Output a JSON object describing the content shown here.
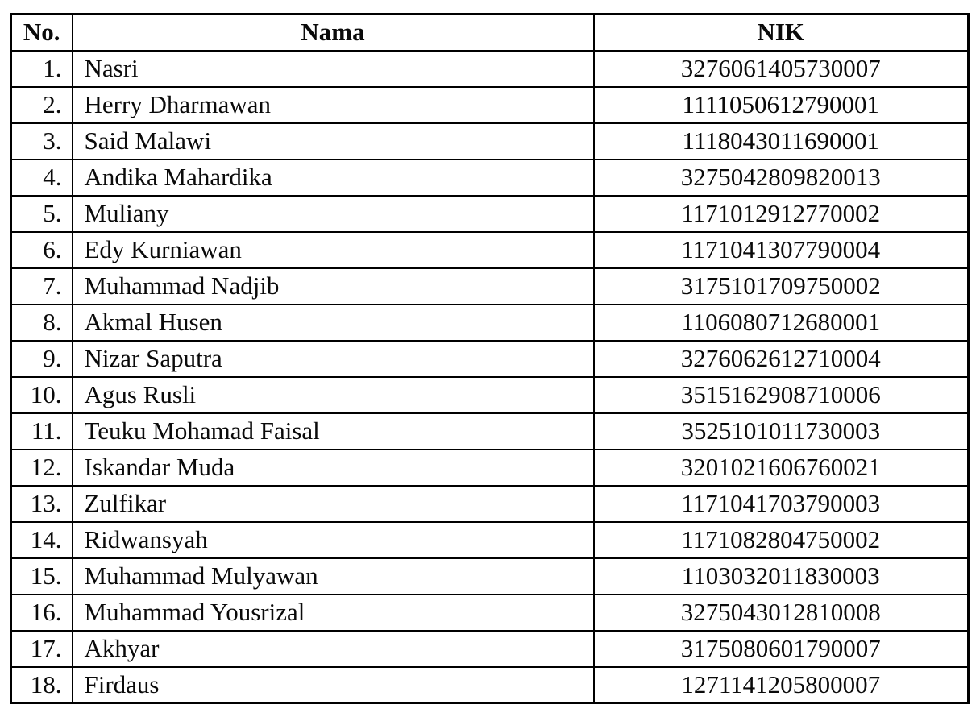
{
  "table": {
    "headers": {
      "no": "No.",
      "nama": "Nama",
      "nik": "NIK"
    },
    "rows": [
      {
        "no": "1.",
        "nama": "Nasri",
        "nik": "3276061405730007"
      },
      {
        "no": "2.",
        "nama": "Herry Dharmawan",
        "nik": "1111050612790001"
      },
      {
        "no": "3.",
        "nama": "Said Malawi",
        "nik": "1118043011690001"
      },
      {
        "no": "4.",
        "nama": "Andika Mahardika",
        "nik": "3275042809820013"
      },
      {
        "no": "5.",
        "nama": "Muliany",
        "nik": "1171012912770002"
      },
      {
        "no": "6.",
        "nama": "Edy Kurniawan",
        "nik": "1171041307790004"
      },
      {
        "no": "7.",
        "nama": "Muhammad Nadjib",
        "nik": "3175101709750002"
      },
      {
        "no": "8.",
        "nama": "Akmal Husen",
        "nik": "1106080712680001"
      },
      {
        "no": "9.",
        "nama": "Nizar Saputra",
        "nik": "3276062612710004"
      },
      {
        "no": "10.",
        "nama": "Agus Rusli",
        "nik": "3515162908710006"
      },
      {
        "no": "11.",
        "nama": "Teuku Mohamad Faisal",
        "nik": "3525101011730003"
      },
      {
        "no": "12.",
        "nama": "Iskandar Muda",
        "nik": "3201021606760021"
      },
      {
        "no": "13.",
        "nama": "Zulfikar",
        "nik": "1171041703790003"
      },
      {
        "no": "14.",
        "nama": "Ridwansyah",
        "nik": "1171082804750002"
      },
      {
        "no": "15.",
        "nama": "Muhammad Mulyawan",
        "nik": "1103032011830003"
      },
      {
        "no": "16.",
        "nama": "Muhammad Yousrizal",
        "nik": "3275043012810008"
      },
      {
        "no": "17.",
        "nama": "Akhyar",
        "nik": "3175080601790007"
      },
      {
        "no": "18.",
        "nama": "Firdaus",
        "nik": "1271141205800007"
      }
    ]
  }
}
